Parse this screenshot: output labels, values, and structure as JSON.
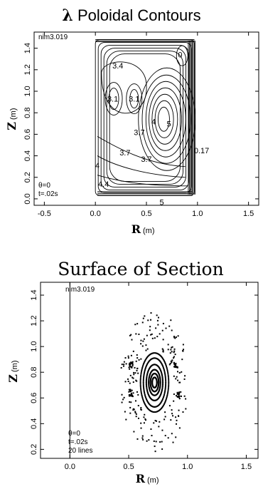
{
  "chart_data": [
    {
      "type": "contour",
      "title": "λ Poloidal Contours",
      "title_symbol": "λ",
      "title_rest": " Poloidal Contours",
      "xlabel": "R",
      "xunit": "(m)",
      "ylabel": "Z",
      "yunit": "(m)",
      "xlim": [
        -0.6,
        1.6
      ],
      "ylim": [
        -0.06,
        1.55
      ],
      "xticks": [
        -0.5,
        0.0,
        0.5,
        1.0,
        1.5
      ],
      "xtick_labels": [
        "-0.5",
        "0.0",
        "0.5",
        "1.0",
        "1.5"
      ],
      "yticks": [
        0.0,
        0.2,
        0.4,
        0.6,
        0.8,
        1.0,
        1.2,
        1.4
      ],
      "ytick_labels": [
        "0.0",
        "0.2",
        "0.4",
        "0.6",
        "0.8",
        "1.0",
        "1.2",
        "1.4"
      ],
      "annotations": [
        "nim3.019",
        "θ=0",
        "t=.02s"
      ],
      "contour_labels": [
        {
          "text": "3.4",
          "x": 0.22,
          "y": 1.24
        },
        {
          "text": "3.1",
          "x": 0.17,
          "y": 0.93
        },
        {
          "text": "3.1",
          "x": 0.38,
          "y": 0.93
        },
        {
          "text": "5",
          "x": 0.72,
          "y": 0.7
        },
        {
          "text": "4",
          "x": 0.57,
          "y": 0.72
        },
        {
          "text": "3.7",
          "x": 0.43,
          "y": 0.62
        },
        {
          "text": "3.7",
          "x": 0.29,
          "y": 0.43
        },
        {
          "text": "3.7",
          "x": 0.5,
          "y": 0.37
        },
        {
          "text": "0.17",
          "x": 1.04,
          "y": 0.45
        },
        {
          "text": "4",
          "x": 0.02,
          "y": 0.31
        },
        {
          "text": "4.4",
          "x": 0.08,
          "y": 0.14
        },
        {
          "text": "0",
          "x": 0.83,
          "y": 1.34
        },
        {
          "text": "5",
          "x": 0.65,
          "y": -0.03
        }
      ]
    },
    {
      "type": "scatter",
      "title": "Surface of Section",
      "xlabel": "R",
      "xunit": "(m)",
      "ylabel": "Z",
      "yunit": "(m)",
      "xlim": [
        -0.25,
        1.6
      ],
      "ylim": [
        0.13,
        1.5
      ],
      "xticks": [
        0.0,
        0.5,
        1.0,
        1.5
      ],
      "xtick_labels": [
        "0.0",
        "0.5",
        "1.0",
        "1.5"
      ],
      "yticks": [
        0.2,
        0.4,
        0.6,
        0.8,
        1.0,
        1.2,
        1.4
      ],
      "ytick_labels": [
        "0.2",
        "0.4",
        "0.6",
        "0.8",
        "1.0",
        "1.2",
        "1.4"
      ],
      "annotations": [
        "nim3.019",
        "θ=0",
        "t=.02s",
        "20 lines"
      ],
      "center": [
        0.72,
        0.72
      ],
      "lines": 20
    }
  ]
}
